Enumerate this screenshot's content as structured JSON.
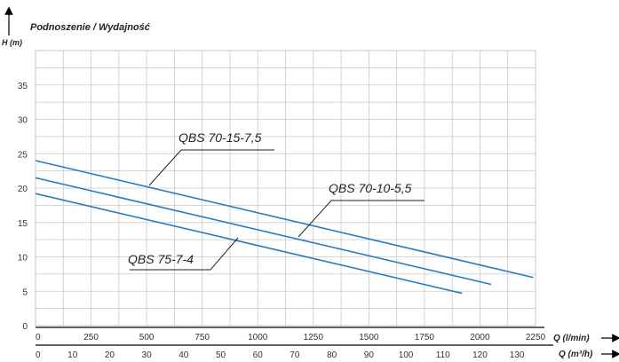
{
  "chart_data": {
    "type": "line",
    "title": "Podnoszenie / Wydajność",
    "ylabel": "H (m)",
    "xlabel": "Q (l/min)",
    "xlabel2": "Q (m³/h)",
    "xlim": [
      0,
      2250
    ],
    "ylim": [
      0,
      40
    ],
    "x_ticks": [
      "0",
      "250",
      "500",
      "750",
      "1000",
      "1250",
      "1500",
      "1750",
      "2000",
      "2250"
    ],
    "x2_ticks": [
      "0",
      "10",
      "20",
      "30",
      "40",
      "50",
      "60",
      "70",
      "80",
      "90",
      "100",
      "110",
      "120",
      "130"
    ],
    "y_ticks": [
      "0",
      "5",
      "10",
      "15",
      "20",
      "25",
      "30",
      "35"
    ],
    "grid": true,
    "line_color": "#2b7bbf",
    "series": [
      {
        "name": "QBS 70-15-7,5",
        "x": [
          0,
          2240
        ],
        "y": [
          24,
          7
        ]
      },
      {
        "name": "QBS 70-10-5,5",
        "x": [
          0,
          2050
        ],
        "y": [
          21.5,
          6
        ]
      },
      {
        "name": "QBS 75-7-4",
        "x": [
          0,
          1920
        ],
        "y": [
          19.2,
          4.7
        ]
      }
    ]
  }
}
